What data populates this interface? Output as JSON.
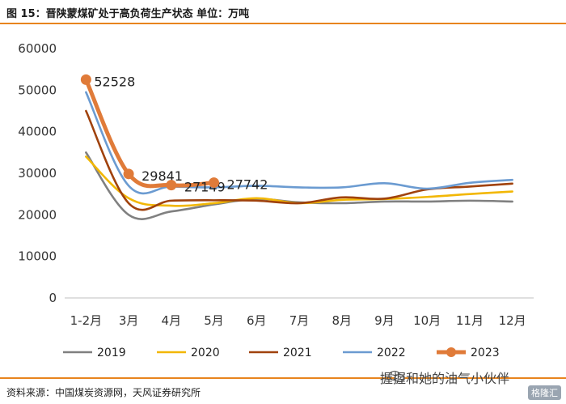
{
  "header": {
    "title": "图 15：晋陕蒙煤矿处于高负荷生产状态 单位：万吨"
  },
  "footer": {
    "source": "资料来源：中国煤炭资源网，天风证券研究所",
    "watermark": "握握和她的油气小伙伴",
    "badge": "格隆汇"
  },
  "icons": {
    "watermark_icon": "wechat-icon"
  },
  "chart_data": {
    "type": "line",
    "categories": [
      "1-2月",
      "3月",
      "4月",
      "5月",
      "6月",
      "7月",
      "8月",
      "9月",
      "10月",
      "11月",
      "12月"
    ],
    "ylim": [
      0,
      60000
    ],
    "yticks": [
      "0",
      "10000",
      "20000",
      "30000",
      "40000",
      "50000",
      "60000"
    ],
    "grid": false,
    "legend_position": "bottom",
    "series": [
      {
        "name": "2019",
        "color": "#808080",
        "values": [
          35000,
          20000,
          20800,
          22500,
          23800,
          23000,
          22800,
          23200,
          23200,
          23400,
          23200
        ]
      },
      {
        "name": "2020",
        "color": "#f2b705",
        "values": [
          34000,
          24000,
          22200,
          22800,
          24000,
          22800,
          23600,
          23800,
          24300,
          25000,
          25600
        ]
      },
      {
        "name": "2021",
        "color": "#a0420d",
        "values": [
          45000,
          22800,
          23400,
          23500,
          23400,
          22800,
          24200,
          23900,
          26100,
          26800,
          27500
        ]
      },
      {
        "name": "2022",
        "color": "#6b9bd1",
        "values": [
          49500,
          27000,
          26800,
          26600,
          27000,
          26600,
          26600,
          27600,
          26300,
          27700,
          28400
        ]
      },
      {
        "name": "2023",
        "color": "#e07b39",
        "values": [
          52528,
          29841,
          27149,
          27742,
          null,
          null,
          null,
          null,
          null,
          null,
          null
        ],
        "labels": [
          "52528",
          "29841",
          "27149",
          "27742"
        ]
      }
    ]
  }
}
